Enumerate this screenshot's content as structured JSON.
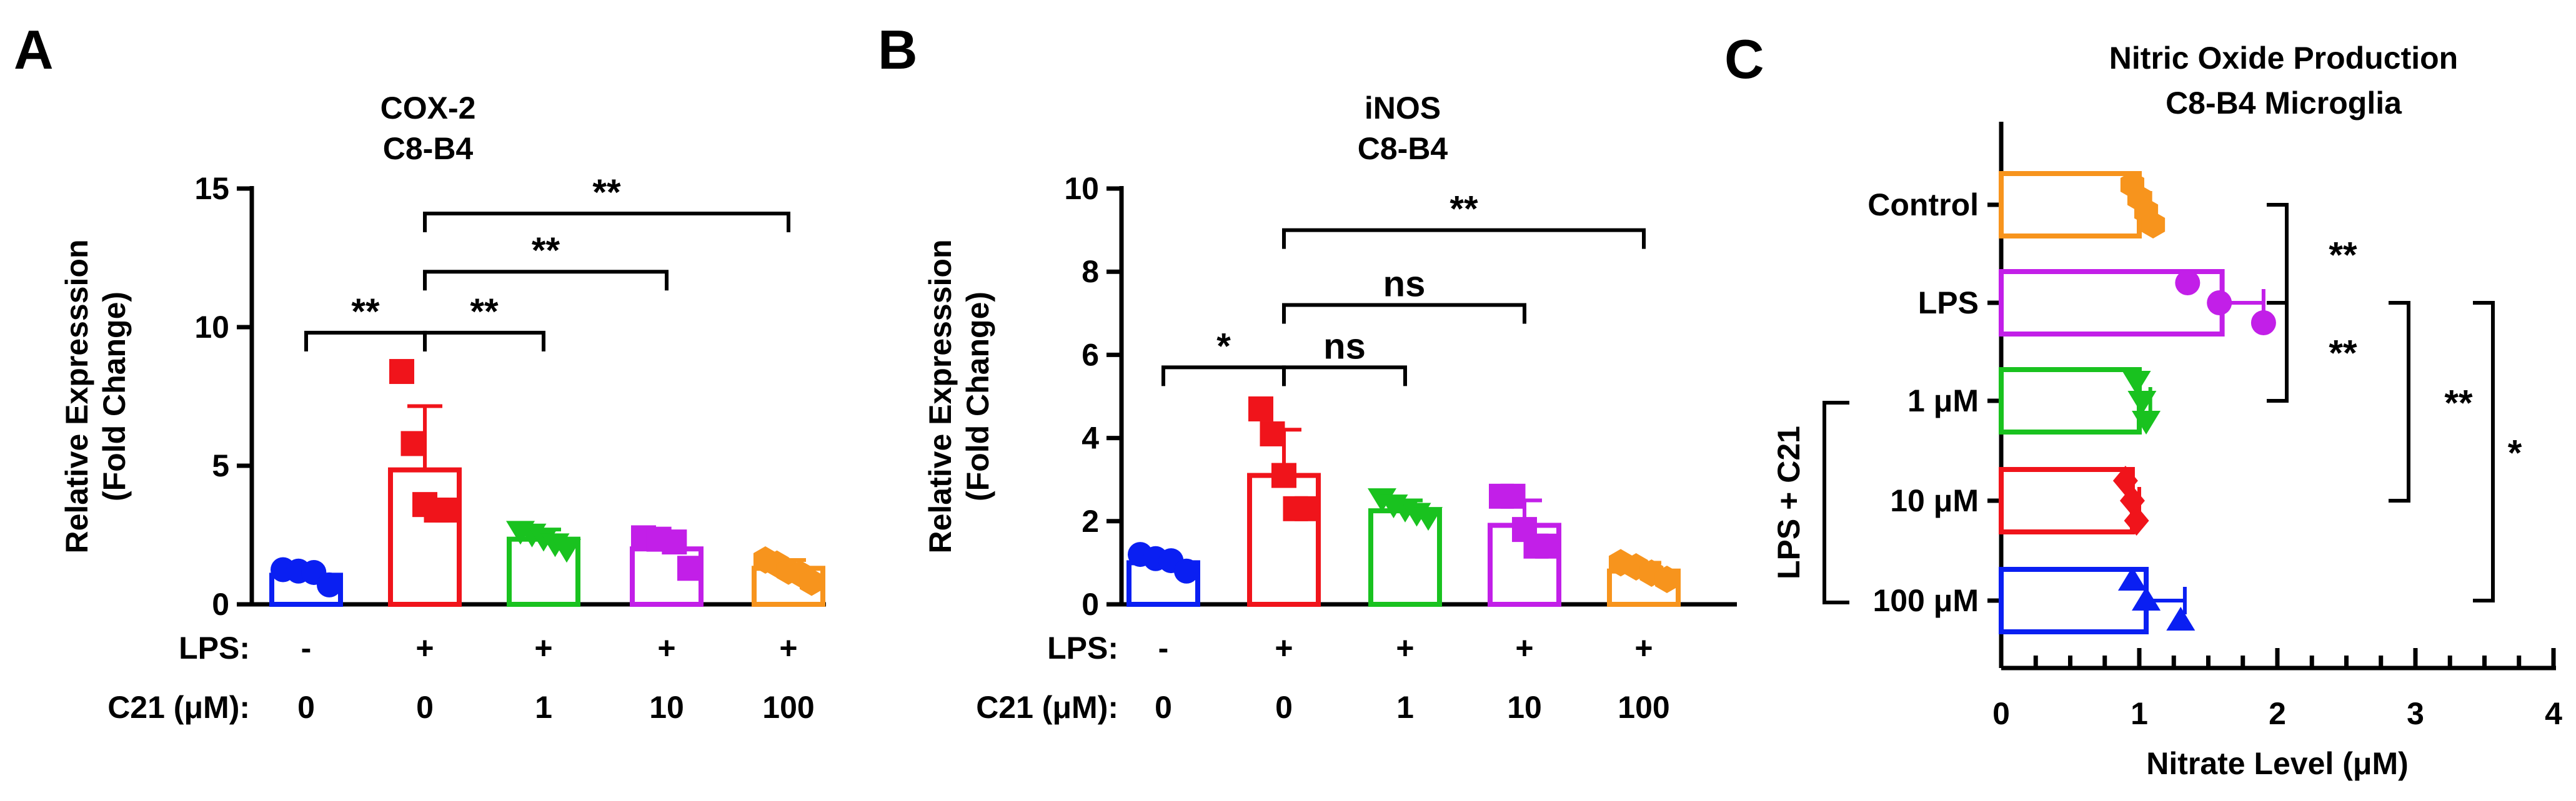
{
  "colors": {
    "blue": "#0a1ff2",
    "red": "#f0141b",
    "green": "#19c21f",
    "magenta": "#c21fe8",
    "orange": "#f7941d"
  },
  "chart_data": [
    {
      "type": "bar",
      "panel": "A",
      "title": "COX-2",
      "subtitle": "C8-B4",
      "ylabel_line1": "Relative Expresssion",
      "ylabel_line2": "(Fold Change)",
      "ylim": [
        0,
        15
      ],
      "yticks": [
        0,
        5,
        10,
        15
      ],
      "row_labels": {
        "lps": "LPS:",
        "c21": "C21 (μM):"
      },
      "categories": [
        {
          "lps": "-",
          "c21": "0",
          "color": "blue",
          "marker": "circle",
          "mean": 1.05,
          "sd": 0.2,
          "points": [
            1.25,
            1.2,
            1.15,
            0.7
          ]
        },
        {
          "lps": "+",
          "c21": "0",
          "color": "red",
          "marker": "square",
          "mean": 4.85,
          "sd": 2.3,
          "points": [
            8.4,
            5.8,
            3.6,
            3.4,
            3.4
          ]
        },
        {
          "lps": "+",
          "c21": "1",
          "color": "green",
          "marker": "tri-down",
          "mean": 2.35,
          "sd": 0.35,
          "points": [
            2.65,
            2.55,
            2.4,
            2.2,
            2.0
          ]
        },
        {
          "lps": "+",
          "c21": "10",
          "color": "magenta",
          "marker": "square",
          "mean": 2.0,
          "sd": 0.4,
          "points": [
            2.4,
            2.35,
            2.25,
            1.3
          ]
        },
        {
          "lps": "+",
          "c21": "100",
          "color": "orange",
          "marker": "hexagon",
          "mean": 1.3,
          "sd": 0.3,
          "points": [
            1.6,
            1.45,
            1.2,
            1.1,
            0.8
          ]
        }
      ],
      "significance": [
        {
          "from": 0,
          "to": 1,
          "label": "**",
          "level": 9.8
        },
        {
          "from": 1,
          "to": 2,
          "label": "**",
          "level": 9.8
        },
        {
          "from": 1,
          "to": 3,
          "label": "**",
          "level": 12.0
        },
        {
          "from": 1,
          "to": 4,
          "label": "**",
          "level": 14.1
        }
      ]
    },
    {
      "type": "bar",
      "panel": "B",
      "title": "iNOS",
      "subtitle": "C8-B4",
      "ylabel_line1": "Relative Expresssion",
      "ylabel_line2": "(Fold Change)",
      "ylim": [
        0,
        10
      ],
      "yticks": [
        0,
        2,
        4,
        6,
        8,
        10
      ],
      "row_labels": {
        "lps": "LPS:",
        "c21": "C21 (μM):"
      },
      "categories": [
        {
          "lps": "-",
          "c21": "0",
          "color": "blue",
          "marker": "circle",
          "mean": 1.0,
          "sd": 0.15,
          "points": [
            1.2,
            1.1,
            1.05,
            0.8
          ]
        },
        {
          "lps": "+",
          "c21": "0",
          "color": "red",
          "marker": "square",
          "mean": 3.1,
          "sd": 1.1,
          "points": [
            4.7,
            4.1,
            3.1,
            2.3,
            2.3
          ]
        },
        {
          "lps": "+",
          "c21": "1",
          "color": "green",
          "marker": "tri-down",
          "mean": 2.25,
          "sd": 0.25,
          "points": [
            2.55,
            2.4,
            2.3,
            2.2,
            2.1
          ]
        },
        {
          "lps": "+",
          "c21": "10",
          "color": "magenta",
          "marker": "square",
          "mean": 1.9,
          "sd": 0.6,
          "points": [
            2.6,
            2.6,
            1.8,
            1.4,
            1.4
          ]
        },
        {
          "lps": "+",
          "c21": "100",
          "color": "orange",
          "marker": "hexagon",
          "mean": 0.8,
          "sd": 0.2,
          "points": [
            1.0,
            0.9,
            0.75,
            0.6
          ]
        }
      ],
      "significance": [
        {
          "from": 0,
          "to": 1,
          "label": "*",
          "level": 5.7
        },
        {
          "from": 1,
          "to": 2,
          "label": "ns",
          "level": 5.7
        },
        {
          "from": 1,
          "to": 3,
          "label": "ns",
          "level": 7.2
        },
        {
          "from": 1,
          "to": 4,
          "label": "**",
          "level": 9.0
        }
      ]
    },
    {
      "type": "bar",
      "orientation": "horizontal",
      "panel": "C",
      "title": "Nitric Oxide Production",
      "subtitle": "C8-B4 Microglia",
      "xlabel": "Nitrate Level (μM)",
      "xlim": [
        0,
        4
      ],
      "xticks": [
        0,
        1,
        2,
        3,
        4
      ],
      "group_label": "LPS + C21",
      "categories": [
        {
          "label": "Control",
          "color": "orange",
          "marker": "hexagon",
          "mean": 1.0,
          "sd": 0.08,
          "points": [
            0.95,
            1.0,
            1.05,
            1.1
          ]
        },
        {
          "label": "LPS",
          "color": "magenta",
          "marker": "circle",
          "mean": 1.6,
          "sd": 0.3,
          "points": [
            1.35,
            1.58,
            1.9
          ]
        },
        {
          "label": "1 μM",
          "color": "green",
          "marker": "tri-down",
          "mean": 1.0,
          "sd": 0.08,
          "points": [
            0.98,
            1.02,
            1.05
          ]
        },
        {
          "label": "10 μM",
          "color": "red",
          "marker": "diamond",
          "mean": 0.95,
          "sd": 0.05,
          "points": [
            0.9,
            0.95,
            0.98
          ]
        },
        {
          "label": "100 μM",
          "color": "blue",
          "marker": "tri-up",
          "mean": 1.05,
          "sd": 0.28,
          "points": [
            0.95,
            1.05,
            1.3
          ]
        }
      ],
      "significance": [
        {
          "from": 0,
          "to": 1,
          "label": "**"
        },
        {
          "from": 1,
          "to": 2,
          "label": "**"
        },
        {
          "from": 1,
          "to": 3,
          "label": "**"
        },
        {
          "from": 1,
          "to": 4,
          "label": "*"
        }
      ]
    }
  ]
}
